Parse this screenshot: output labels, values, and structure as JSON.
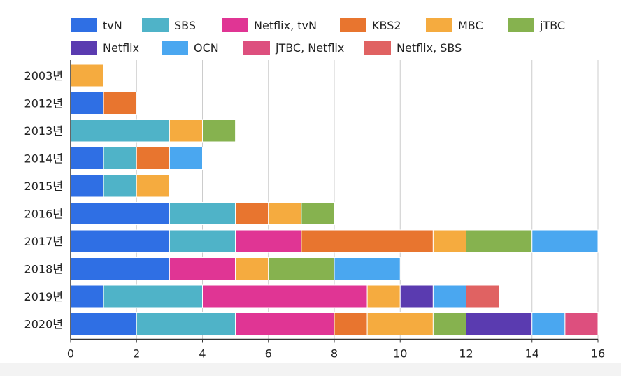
{
  "chart_data": {
    "type": "bar",
    "orientation": "horizontal",
    "stacked": true,
    "categories": [
      "2003년",
      "2012년",
      "2013년",
      "2014년",
      "2015년",
      "2016년",
      "2017년",
      "2018년",
      "2019년",
      "2020년"
    ],
    "series": [
      {
        "name": "tvN",
        "color": "#2f6fe4",
        "values": [
          0,
          1,
          0,
          1,
          1,
          3,
          3,
          3,
          1,
          2
        ]
      },
      {
        "name": "SBS",
        "color": "#4fb3c8",
        "values": [
          0,
          0,
          3,
          1,
          1,
          2,
          2,
          0,
          3,
          3
        ]
      },
      {
        "name": "Netflix, tvN",
        "color": "#e03594",
        "values": [
          0,
          0,
          0,
          0,
          0,
          0,
          2,
          2,
          5,
          3
        ]
      },
      {
        "name": "KBS2",
        "color": "#e8752f",
        "values": [
          0,
          1,
          0,
          1,
          0,
          1,
          4,
          0,
          0,
          1
        ]
      },
      {
        "name": "MBC",
        "color": "#f5ab3f",
        "values": [
          1,
          0,
          1,
          0,
          1,
          1,
          1,
          1,
          1,
          2
        ]
      },
      {
        "name": "jTBC",
        "color": "#86b24f",
        "values": [
          0,
          0,
          1,
          0,
          0,
          1,
          2,
          2,
          0,
          1
        ]
      },
      {
        "name": "Netflix",
        "color": "#5a3bb0",
        "values": [
          0,
          0,
          0,
          0,
          0,
          0,
          0,
          0,
          1,
          2
        ]
      },
      {
        "name": "OCN",
        "color": "#4aa7f0",
        "values": [
          0,
          0,
          0,
          1,
          0,
          0,
          2,
          2,
          1,
          1
        ]
      },
      {
        "name": "jTBC, Netflix",
        "color": "#dd4f7e",
        "values": [
          0,
          0,
          0,
          0,
          0,
          0,
          0,
          0,
          0,
          1
        ]
      },
      {
        "name": "Netflix, SBS",
        "color": "#e06262",
        "values": [
          0,
          0,
          0,
          0,
          0,
          0,
          0,
          0,
          1,
          0
        ]
      }
    ],
    "xlim": [
      0,
      16
    ],
    "x_ticks": [
      0,
      2,
      4,
      6,
      8,
      10,
      12,
      14,
      16
    ],
    "grid": true,
    "legend_position": "top",
    "title": "",
    "xlabel": "",
    "ylabel": ""
  }
}
